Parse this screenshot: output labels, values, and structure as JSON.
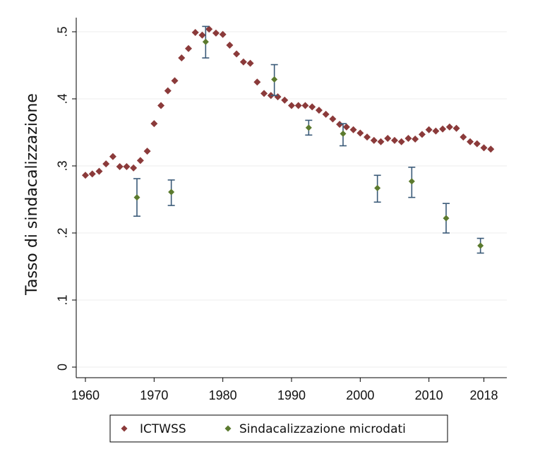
{
  "colors": {
    "ictwss": "#8b3a3a",
    "microdati": "#5b7a2e",
    "errorbar": "#3a5a78",
    "grid": "#ececec",
    "axis": "#000000"
  },
  "chart_data": {
    "type": "scatter",
    "title": "",
    "xlabel": "",
    "ylabel": "Tasso di sindacalizzazione",
    "xlim": [
      1960,
      2021
    ],
    "ylim": [
      0,
      0.5
    ],
    "x_ticks": [
      1960,
      1970,
      1980,
      1990,
      2000,
      2010,
      2018
    ],
    "x_tick_labels": [
      "1960",
      "1970",
      "1980",
      "1990",
      "2000",
      "2010",
      "2018"
    ],
    "y_ticks": [
      0,
      0.1,
      0.2,
      0.3,
      0.4,
      0.5
    ],
    "y_tick_labels": [
      "0",
      ".1",
      ".2",
      ".3",
      ".4",
      ".5"
    ],
    "grid": true,
    "legend_position": "bottom",
    "series": [
      {
        "name": "ICTWSS",
        "marker": "diamond",
        "points": [
          {
            "x": 1960,
            "y": 0.286
          },
          {
            "x": 1961,
            "y": 0.288
          },
          {
            "x": 1962,
            "y": 0.292
          },
          {
            "x": 1963,
            "y": 0.303
          },
          {
            "x": 1964,
            "y": 0.314
          },
          {
            "x": 1965,
            "y": 0.299
          },
          {
            "x": 1966,
            "y": 0.299
          },
          {
            "x": 1967,
            "y": 0.297
          },
          {
            "x": 1968,
            "y": 0.308
          },
          {
            "x": 1969,
            "y": 0.322
          },
          {
            "x": 1970,
            "y": 0.363
          },
          {
            "x": 1971,
            "y": 0.39
          },
          {
            "x": 1972,
            "y": 0.412
          },
          {
            "x": 1973,
            "y": 0.427
          },
          {
            "x": 1974,
            "y": 0.461
          },
          {
            "x": 1975,
            "y": 0.475
          },
          {
            "x": 1976,
            "y": 0.499
          },
          {
            "x": 1977,
            "y": 0.495
          },
          {
            "x": 1978,
            "y": 0.504
          },
          {
            "x": 1979,
            "y": 0.498
          },
          {
            "x": 1980,
            "y": 0.496
          },
          {
            "x": 1981,
            "y": 0.48
          },
          {
            "x": 1982,
            "y": 0.467
          },
          {
            "x": 1983,
            "y": 0.455
          },
          {
            "x": 1984,
            "y": 0.453
          },
          {
            "x": 1985,
            "y": 0.425
          },
          {
            "x": 1986,
            "y": 0.408
          },
          {
            "x": 1987,
            "y": 0.405
          },
          {
            "x": 1988,
            "y": 0.403
          },
          {
            "x": 1989,
            "y": 0.398
          },
          {
            "x": 1990,
            "y": 0.39
          },
          {
            "x": 1991,
            "y": 0.39
          },
          {
            "x": 1992,
            "y": 0.39
          },
          {
            "x": 1993,
            "y": 0.388
          },
          {
            "x": 1994,
            "y": 0.383
          },
          {
            "x": 1995,
            "y": 0.377
          },
          {
            "x": 1996,
            "y": 0.37
          },
          {
            "x": 1997,
            "y": 0.362
          },
          {
            "x": 1998,
            "y": 0.358
          },
          {
            "x": 1999,
            "y": 0.354
          },
          {
            "x": 2000,
            "y": 0.349
          },
          {
            "x": 2001,
            "y": 0.343
          },
          {
            "x": 2002,
            "y": 0.338
          },
          {
            "x": 2003,
            "y": 0.336
          },
          {
            "x": 2004,
            "y": 0.341
          },
          {
            "x": 2005,
            "y": 0.338
          },
          {
            "x": 2006,
            "y": 0.336
          },
          {
            "x": 2007,
            "y": 0.341
          },
          {
            "x": 2008,
            "y": 0.34
          },
          {
            "x": 2009,
            "y": 0.347
          },
          {
            "x": 2010,
            "y": 0.354
          },
          {
            "x": 2011,
            "y": 0.352
          },
          {
            "x": 2012,
            "y": 0.355
          },
          {
            "x": 2013,
            "y": 0.358
          },
          {
            "x": 2014,
            "y": 0.356
          },
          {
            "x": 2015,
            "y": 0.343
          },
          {
            "x": 2016,
            "y": 0.336
          },
          {
            "x": 2017,
            "y": 0.333
          },
          {
            "x": 2018,
            "y": 0.327
          },
          {
            "x": 2019,
            "y": 0.325
          }
        ]
      },
      {
        "name": "Sindacalizzazione microdati",
        "marker": "diamond",
        "error_bars": true,
        "points": [
          {
            "x": 1967.5,
            "y": 0.253,
            "lo": 0.225,
            "hi": 0.281
          },
          {
            "x": 1972.5,
            "y": 0.261,
            "lo": 0.241,
            "hi": 0.279
          },
          {
            "x": 1977.5,
            "y": 0.485,
            "lo": 0.461,
            "hi": 0.508
          },
          {
            "x": 1987.5,
            "y": 0.429,
            "lo": 0.405,
            "hi": 0.451
          },
          {
            "x": 1992.5,
            "y": 0.357,
            "lo": 0.346,
            "hi": 0.368
          },
          {
            "x": 1997.5,
            "y": 0.348,
            "lo": 0.33,
            "hi": 0.363
          },
          {
            "x": 2002.5,
            "y": 0.267,
            "lo": 0.246,
            "hi": 0.286
          },
          {
            "x": 2007.5,
            "y": 0.277,
            "lo": 0.253,
            "hi": 0.298
          },
          {
            "x": 2012.5,
            "y": 0.222,
            "lo": 0.2,
            "hi": 0.244
          },
          {
            "x": 2017.5,
            "y": 0.181,
            "lo": 0.17,
            "hi": 0.192
          }
        ]
      }
    ]
  },
  "legend": {
    "items": [
      "ICTWSS",
      "Sindacalizzazione microdati"
    ]
  }
}
